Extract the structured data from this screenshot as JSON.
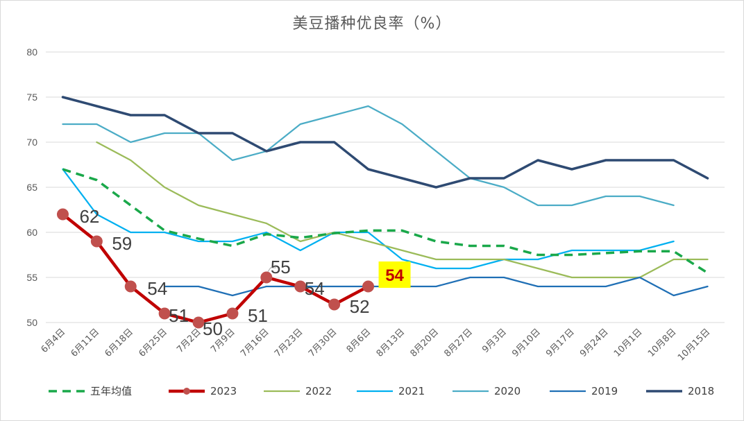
{
  "chart_data": {
    "type": "line",
    "title": "美豆播种优良率（%）",
    "xlabel": "",
    "ylabel": "",
    "ylim": [
      50,
      80
    ],
    "yticks": [
      50,
      55,
      60,
      65,
      70,
      75,
      80
    ],
    "grid": "horizontal",
    "legend_position": "bottom",
    "categories": [
      "6月4日",
      "6月11日",
      "6月18日",
      "6月25日",
      "7月2日",
      "7月9日",
      "7月16日",
      "7月23日",
      "7月30日",
      "8月6日",
      "8月13日",
      "8月20日",
      "8月27日",
      "9月3日",
      "9月10日",
      "9月17日",
      "9月24日",
      "10月1日",
      "10月8日",
      "10月15日"
    ],
    "series": [
      {
        "name": "五年均值",
        "color": "#1aa84a",
        "style": "dashed",
        "values": [
          67,
          65.8,
          63,
          60.2,
          59.3,
          58.5,
          59.8,
          59.4,
          59.9,
          60.2,
          60.2,
          59,
          58.5,
          58.5,
          57.5,
          57.5,
          57.7,
          57.9,
          57.9,
          55.5
        ]
      },
      {
        "name": "2023",
        "color": "#c00000",
        "style": "marker",
        "values": [
          62,
          59,
          54,
          51,
          50,
          51,
          55,
          54,
          52,
          54,
          null,
          null,
          null,
          null,
          null,
          null,
          null,
          null,
          null,
          null
        ]
      },
      {
        "name": "2022",
        "color": "#9bbb59",
        "style": "solid",
        "values": [
          null,
          70,
          68,
          65,
          63,
          62,
          61,
          59,
          60,
          59,
          58,
          57,
          57,
          57,
          56,
          55,
          55,
          55,
          57,
          57
        ]
      },
      {
        "name": "2021",
        "color": "#00b0f0",
        "style": "solid",
        "values": [
          67,
          62,
          60,
          60,
          59,
          59,
          60,
          58,
          60,
          60,
          57,
          56,
          56,
          57,
          57,
          58,
          58,
          58,
          59,
          null
        ]
      },
      {
        "name": "2020",
        "color": "#4bacc6",
        "style": "solid",
        "values": [
          72,
          72,
          70,
          71,
          71,
          68,
          69,
          72,
          73,
          74,
          72,
          69,
          66,
          65,
          63,
          63,
          64,
          64,
          63,
          null
        ]
      },
      {
        "name": "2019",
        "color": "#1f6fb5",
        "style": "solid",
        "values": [
          null,
          null,
          null,
          54,
          54,
          53,
          54,
          54,
          54,
          54,
          54,
          54,
          55,
          55,
          54,
          54,
          54,
          55,
          53,
          54
        ]
      },
      {
        "name": "2018",
        "color": "#2e4a72",
        "style": "solid",
        "values": [
          75,
          74,
          73,
          73,
          71,
          71,
          69,
          70,
          70,
          67,
          66,
          65,
          66,
          66,
          68,
          67,
          68,
          68,
          68,
          66
        ]
      }
    ],
    "data_labels": [
      {
        "series": "2023",
        "index": 0,
        "text": "62"
      },
      {
        "series": "2023",
        "index": 1,
        "text": "59"
      },
      {
        "series": "2023",
        "index": 2,
        "text": "54"
      },
      {
        "series": "2023",
        "index": 3,
        "text": "51"
      },
      {
        "series": "2023",
        "index": 4,
        "text": "50"
      },
      {
        "series": "2023",
        "index": 5,
        "text": "51"
      },
      {
        "series": "2023",
        "index": 6,
        "text": "55"
      },
      {
        "series": "2023",
        "index": 7,
        "text": "54"
      },
      {
        "series": "2023",
        "index": 8,
        "text": "52"
      },
      {
        "series": "2023",
        "index": 9,
        "text": "54",
        "highlight": true
      }
    ],
    "highlight_fill": "#ffff00"
  }
}
